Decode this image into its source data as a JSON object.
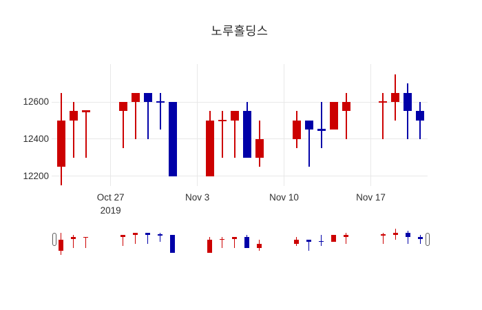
{
  "chart_data": {
    "type": "candlestick",
    "title": "노루홀딩스",
    "xlabel": "",
    "ylabel": "",
    "ylim": [
      12150,
      12800
    ],
    "grid": true,
    "colors": {
      "up": "#cc0000",
      "down": "#0000a8",
      "grid": "#e8e8e8",
      "text": "#2f2f2f"
    },
    "y_ticks": [
      {
        "value": 12200,
        "label": "12200"
      },
      {
        "value": 12400,
        "label": "12400"
      },
      {
        "value": 12600,
        "label": "12600"
      }
    ],
    "x_ticks": [
      {
        "date": "2019-10-27",
        "label": "Oct 27",
        "sublabel": "2019"
      },
      {
        "date": "2019-11-03",
        "label": "Nov 3",
        "sublabel": ""
      },
      {
        "date": "2019-11-10",
        "label": "Nov 10",
        "sublabel": ""
      },
      {
        "date": "2019-11-17",
        "label": "Nov 17",
        "sublabel": ""
      }
    ],
    "rangeslider": true,
    "candles": [
      {
        "date": "2019-10-23",
        "open": 12250,
        "high": 12650,
        "low": 12150,
        "close": 12500,
        "dir": "up"
      },
      {
        "date": "2019-10-24",
        "open": 12500,
        "high": 12600,
        "low": 12300,
        "close": 12550,
        "dir": "up"
      },
      {
        "date": "2019-10-25",
        "open": 12550,
        "high": 12550,
        "low": 12300,
        "close": 12550,
        "dir": "up"
      },
      {
        "date": "2019-10-28",
        "open": 12550,
        "high": 12600,
        "low": 12350,
        "close": 12600,
        "dir": "up"
      },
      {
        "date": "2019-10-29",
        "open": 12600,
        "high": 12650,
        "low": 12400,
        "close": 12650,
        "dir": "up"
      },
      {
        "date": "2019-10-30",
        "open": 12650,
        "high": 12650,
        "low": 12400,
        "close": 12600,
        "dir": "down"
      },
      {
        "date": "2019-10-31",
        "open": 12600,
        "high": 12650,
        "low": 12450,
        "close": 12600,
        "dir": "down"
      },
      {
        "date": "2019-11-01",
        "open": 12600,
        "high": 12600,
        "low": 12200,
        "close": 12200,
        "dir": "down"
      },
      {
        "date": "2019-11-04",
        "open": 12200,
        "high": 12550,
        "low": 12200,
        "close": 12500,
        "dir": "up"
      },
      {
        "date": "2019-11-05",
        "open": 12500,
        "high": 12550,
        "low": 12300,
        "close": 12500,
        "dir": "up"
      },
      {
        "date": "2019-11-06",
        "open": 12500,
        "high": 12550,
        "low": 12300,
        "close": 12550,
        "dir": "up"
      },
      {
        "date": "2019-11-07",
        "open": 12550,
        "high": 12600,
        "low": 12300,
        "close": 12300,
        "dir": "down"
      },
      {
        "date": "2019-11-08",
        "open": 12300,
        "high": 12500,
        "low": 12250,
        "close": 12400,
        "dir": "up"
      },
      {
        "date": "2019-11-11",
        "open": 12400,
        "high": 12550,
        "low": 12350,
        "close": 12500,
        "dir": "up"
      },
      {
        "date": "2019-11-12",
        "open": 12500,
        "high": 12500,
        "low": 12250,
        "close": 12450,
        "dir": "down"
      },
      {
        "date": "2019-11-13",
        "open": 12450,
        "high": 12600,
        "low": 12350,
        "close": 12450,
        "dir": "down"
      },
      {
        "date": "2019-11-14",
        "open": 12450,
        "high": 12600,
        "low": 12450,
        "close": 12600,
        "dir": "up"
      },
      {
        "date": "2019-11-15",
        "open": 12550,
        "high": 12650,
        "low": 12400,
        "close": 12600,
        "dir": "up"
      },
      {
        "date": "2019-11-18",
        "open": 12600,
        "high": 12650,
        "low": 12400,
        "close": 12600,
        "dir": "up"
      },
      {
        "date": "2019-11-19",
        "open": 12600,
        "high": 12750,
        "low": 12500,
        "close": 12650,
        "dir": "up"
      },
      {
        "date": "2019-11-20",
        "open": 12650,
        "high": 12700,
        "low": 12400,
        "close": 12550,
        "dir": "down"
      },
      {
        "date": "2019-11-21",
        "open": 12550,
        "high": 12600,
        "low": 12400,
        "close": 12500,
        "dir": "down"
      }
    ]
  }
}
